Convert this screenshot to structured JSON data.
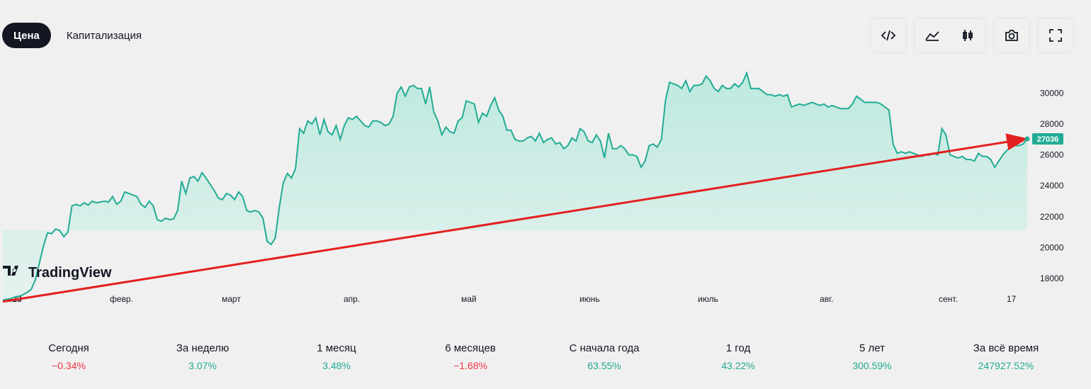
{
  "tabs": [
    {
      "label": "Цена",
      "active": true
    },
    {
      "label": "Капитализация",
      "active": false
    }
  ],
  "toolbar": {
    "icons": [
      "embed-code-icon",
      "area-chart-icon",
      "candles-icon",
      "camera-icon",
      "fullscreen-icon"
    ]
  },
  "colors": {
    "line": "#22ab94",
    "fill_top": "#bde9df",
    "fill_bottom": "#e6f2ef",
    "trend_arrow": "#e32020",
    "price_label_bg": "#22ab94",
    "negative": "#f23645",
    "positive": "#22ab94"
  },
  "watermark": "TradingView",
  "chart_data": {
    "type": "area",
    "x_labels": [
      "2023",
      "февр.",
      "март",
      "апр.",
      "май",
      "июнь",
      "июль",
      "авг.",
      "сент.",
      "17"
    ],
    "y_ticks": [
      18000,
      20000,
      22000,
      24000,
      26000,
      28000,
      30000
    ],
    "ylim": [
      16300,
      31900
    ],
    "last_price_label": "27036",
    "series": [
      {
        "values": [
          16600,
          16650,
          16700,
          16800,
          16850,
          16950,
          17100,
          17300,
          17900,
          19000,
          20100,
          20950,
          20900,
          21200,
          21100,
          20700,
          21000,
          22700,
          22800,
          22700,
          22900,
          22750,
          23000,
          22900,
          22950,
          23000,
          22950,
          23300,
          22800,
          23000,
          23600,
          23500,
          23400,
          23300,
          22800,
          22600,
          23000,
          22700,
          21800,
          21700,
          21900,
          21800,
          21850,
          22400,
          24300,
          23500,
          24500,
          24600,
          24300,
          24850,
          24500,
          24100,
          23700,
          23200,
          23100,
          23500,
          23400,
          23100,
          23600,
          23300,
          22400,
          22300,
          22400,
          22300,
          21900,
          20400,
          20200,
          20600,
          22600,
          24200,
          24800,
          24500,
          25100,
          27700,
          27400,
          28200,
          28000,
          28400,
          27300,
          28300,
          27500,
          27300,
          27900,
          27000,
          27900,
          28400,
          28300,
          28500,
          28200,
          27900,
          27800,
          28200,
          28200,
          28100,
          27900,
          28000,
          28500,
          30000,
          30400,
          29800,
          30400,
          30500,
          30300,
          30300,
          29300,
          30400,
          28800,
          28200,
          27300,
          27800,
          27500,
          27400,
          28200,
          28400,
          29500,
          29400,
          29300,
          28100,
          28700,
          28500,
          29200,
          29700,
          28900,
          28500,
          27600,
          27600,
          27000,
          26900,
          26900,
          27100,
          27200,
          26900,
          27400,
          26800,
          27000,
          27100,
          26700,
          26800,
          26400,
          26600,
          27100,
          26900,
          27700,
          27500,
          26900,
          26800,
          27300,
          26900,
          25800,
          27400,
          26400,
          26400,
          26600,
          26400,
          26000,
          26000,
          25900,
          25200,
          25600,
          26600,
          26700,
          26500,
          27000,
          29500,
          30700,
          30600,
          30500,
          30300,
          30800,
          30100,
          30500,
          30500,
          30600,
          31100,
          30800,
          30300,
          30100,
          30500,
          30300,
          30300,
          30600,
          30400,
          30700,
          31300,
          30300,
          30300,
          30300,
          30100,
          29900,
          29900,
          29800,
          29900,
          29800,
          29900,
          29100,
          29200,
          29300,
          29200,
          29300,
          29400,
          29300,
          29200,
          29300,
          29100,
          29200,
          29100,
          29000,
          29000,
          29000,
          29300,
          29800,
          29600,
          29400,
          29400,
          29400,
          29400,
          29300,
          29100,
          28900,
          26700,
          26100,
          26200,
          26100,
          26200,
          26100,
          26000,
          25900,
          26000,
          26000,
          26100,
          26000,
          27700,
          27300,
          26000,
          25900,
          25800,
          25900,
          25700,
          25700,
          25600,
          26100,
          25900,
          25900,
          25700,
          25200,
          25600,
          26000,
          26300,
          26500,
          26600,
          26600,
          26700,
          27036
        ]
      }
    ],
    "annotations": [
      {
        "type": "arrow",
        "from_value": 16500,
        "to_value": 27036
      }
    ]
  },
  "stats": [
    {
      "label": "Сегодня",
      "value": "−0.34%",
      "trend": "neg"
    },
    {
      "label": "За неделю",
      "value": "3.07%",
      "trend": "pos"
    },
    {
      "label": "1 месяц",
      "value": "3.48%",
      "trend": "pos"
    },
    {
      "label": "6 месяцев",
      "value": "−1.68%",
      "trend": "neg"
    },
    {
      "label": "С начала года",
      "value": "63.55%",
      "trend": "pos"
    },
    {
      "label": "1 год",
      "value": "43.22%",
      "trend": "pos"
    },
    {
      "label": "5 лет",
      "value": "300.59%",
      "trend": "pos"
    },
    {
      "label": "За всё время",
      "value": "247927.52%",
      "trend": "pos"
    }
  ]
}
